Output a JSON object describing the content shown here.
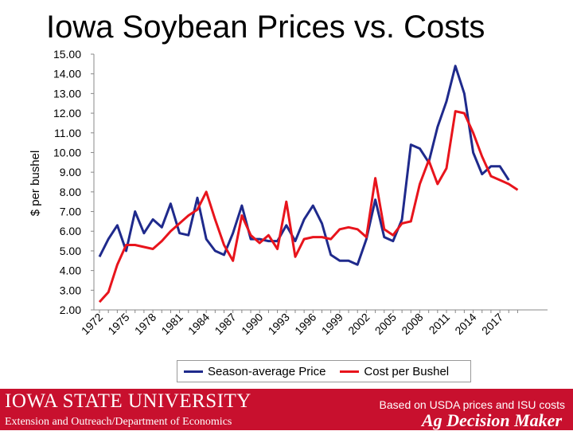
{
  "title": "Iowa Soybean Prices vs. Costs",
  "footer": {
    "university": "IOWA STATE UNIVERSITY",
    "department": "Extension and Outreach/Department of Economics",
    "source_note": "Based on USDA prices and ISU costs",
    "brand": "Ag Decision Maker"
  },
  "colors": {
    "price": "#1f2a8c",
    "cost": "#e8141c",
    "footer": "#c8102e"
  },
  "chart_data": {
    "type": "line",
    "title": "Iowa Soybean Prices vs. Costs",
    "xlabel": "",
    "ylabel": "$ per bushel",
    "ylim": [
      2.0,
      15.0
    ],
    "yticks": [
      "2.00",
      "3.00",
      "4.00",
      "5.00",
      "6.00",
      "7.00",
      "8.00",
      "9.00",
      "10.00",
      "11.00",
      "12.00",
      "13.00",
      "14.00",
      "15.00"
    ],
    "x": [
      1972,
      1973,
      1974,
      1975,
      1976,
      1977,
      1978,
      1979,
      1980,
      1981,
      1982,
      1983,
      1984,
      1985,
      1986,
      1987,
      1988,
      1989,
      1990,
      1991,
      1992,
      1993,
      1994,
      1995,
      1996,
      1997,
      1998,
      1999,
      2000,
      2001,
      2002,
      2003,
      2004,
      2005,
      2006,
      2007,
      2008,
      2009,
      2010,
      2011,
      2012,
      2013,
      2014,
      2015,
      2016,
      2017,
      2018,
      2019
    ],
    "xticks": [
      "1972",
      "1975",
      "1978",
      "1981",
      "1984",
      "1987",
      "1990",
      "1993",
      "1996",
      "1999",
      "2002",
      "2005",
      "2008",
      "2011",
      "2014",
      "2017"
    ],
    "grid": false,
    "legend_position": "bottom",
    "series": [
      {
        "name": "Season-average Price",
        "color": "#1f2a8c",
        "values": [
          4.7,
          5.6,
          6.3,
          5.0,
          7.0,
          5.9,
          6.6,
          6.2,
          7.4,
          5.9,
          5.8,
          7.7,
          5.6,
          5.0,
          4.8,
          5.9,
          7.3,
          5.6,
          5.6,
          5.5,
          5.5,
          6.3,
          5.5,
          6.6,
          7.3,
          6.4,
          4.8,
          4.5,
          4.5,
          4.3,
          5.6,
          7.6,
          5.7,
          5.5,
          6.6,
          10.4,
          10.2,
          9.5,
          11.3,
          12.6,
          14.4,
          13.0,
          10.0,
          8.9,
          9.3,
          9.3,
          8.6,
          null
        ]
      },
      {
        "name": "Cost per Bushel",
        "color": "#e8141c",
        "values": [
          2.4,
          2.9,
          4.3,
          5.3,
          5.3,
          5.2,
          5.1,
          5.5,
          6.0,
          6.4,
          6.8,
          7.1,
          8.0,
          6.6,
          5.3,
          4.5,
          6.8,
          5.8,
          5.4,
          5.8,
          5.1,
          7.5,
          4.7,
          5.6,
          5.7,
          5.7,
          5.6,
          6.1,
          6.2,
          6.1,
          5.7,
          8.7,
          6.1,
          5.8,
          6.4,
          6.5,
          8.4,
          9.6,
          8.4,
          9.2,
          12.1,
          12.0,
          11.0,
          9.8,
          8.8,
          8.6,
          8.4,
          8.1
        ]
      }
    ]
  }
}
